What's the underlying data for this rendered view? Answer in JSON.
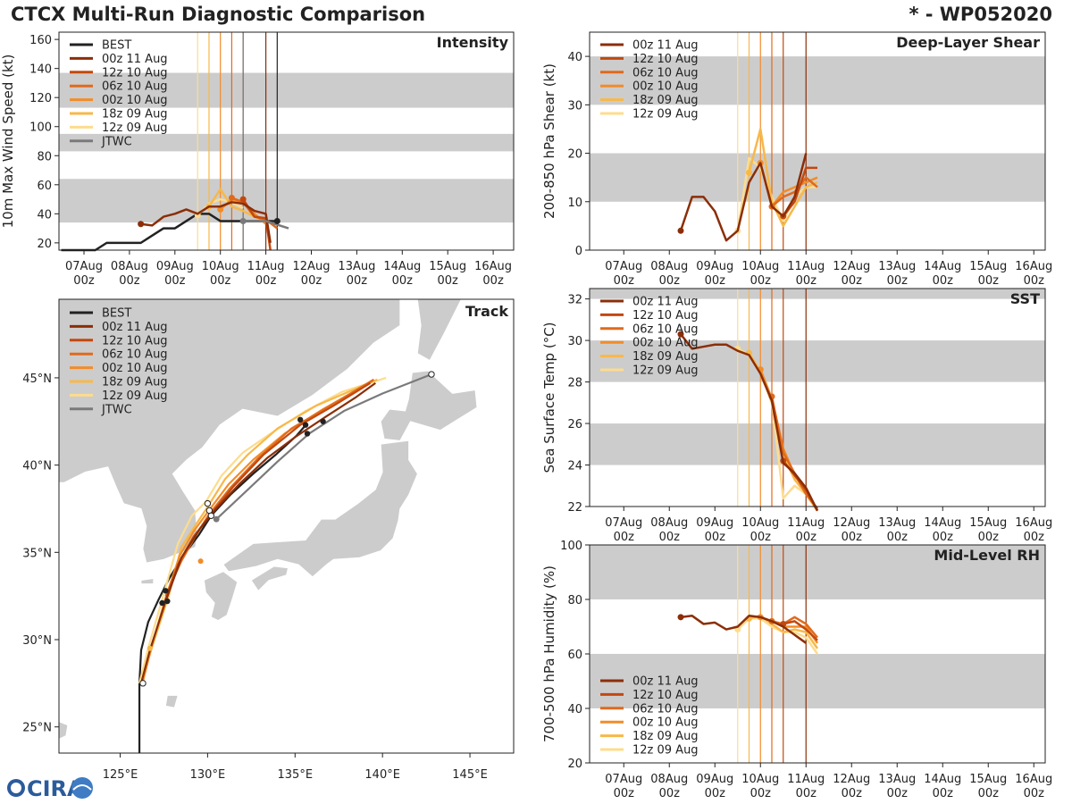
{
  "header": {
    "title": "CTCX Multi-Run Diagnostic Comparison",
    "storm": "* - WP052020"
  },
  "logo": {
    "text": "CIRA"
  },
  "colors": {
    "best": "#222222",
    "jtwc": "#7a7a7a",
    "runs": [
      "#8b2e08",
      "#c2480e",
      "#e06a1c",
      "#f28c28",
      "#f7b84a",
      "#fddc8e"
    ],
    "band": "#cccccc"
  },
  "runs": [
    "00z 11 Aug",
    "12z 10 Aug",
    "06z 10 Aug",
    "00z 10 Aug",
    "18z 09 Aug",
    "12z 09 Aug"
  ],
  "time_axis": {
    "ticks": [
      0,
      1,
      2,
      3,
      4,
      5,
      6,
      7,
      8,
      9
    ],
    "labels_top": [
      "07Aug",
      "08Aug",
      "09Aug",
      "10Aug",
      "11Aug",
      "12Aug",
      "13Aug",
      "14Aug",
      "15Aug",
      "16Aug"
    ],
    "labels_bottom": [
      "00z",
      "00z",
      "00z",
      "00z",
      "00z",
      "00z",
      "00z",
      "00z",
      "00z",
      "00z"
    ],
    "run_init_days": [
      4.0,
      3.5,
      3.25,
      3.0,
      2.75,
      2.5
    ]
  },
  "chart_data": [
    {
      "type": "line",
      "name": "intensity",
      "title": "Intensity",
      "ylabel": "10m Max Wind Speed (kt)",
      "xlim": [
        -0.55,
        9.45
      ],
      "ylim": [
        15,
        165
      ],
      "yticks": [
        20,
        40,
        60,
        80,
        100,
        120,
        140,
        160
      ],
      "bands": [
        [
          34,
          64
        ],
        [
          83,
          95
        ],
        [
          113,
          137
        ]
      ],
      "legend": [
        "BEST",
        "00z 11 Aug",
        "12z 10 Aug",
        "06z 10 Aug",
        "00z 10 Aug",
        "18z 09 Aug",
        "12z 09 Aug",
        "JTWC"
      ],
      "best": {
        "x": [
          -0.5,
          -0.25,
          0,
          0.25,
          0.5,
          0.75,
          1,
          1.25,
          1.5,
          1.75,
          2,
          2.25,
          2.5,
          2.75,
          3,
          3.25,
          3.5,
          3.75,
          4,
          4.25
        ],
        "y": [
          15,
          15,
          15,
          15,
          20,
          20,
          20,
          20,
          25,
          30,
          30,
          35,
          40,
          40,
          35,
          35,
          35,
          35,
          35,
          35
        ]
      },
      "jtwc": {
        "x": [
          3.5,
          4.0,
          4.5
        ],
        "y": [
          35,
          35,
          30
        ]
      },
      "series": [
        {
          "run": 0,
          "x": [
            1.25,
            1.5,
            1.75,
            2,
            2.25,
            2.5,
            2.75,
            3,
            3.25,
            3.5,
            3.75,
            4,
            4.1
          ],
          "y": [
            33,
            32,
            38,
            40,
            43,
            40,
            45,
            45,
            48,
            47,
            42,
            40,
            20
          ]
        },
        {
          "run": 1,
          "x": [
            3.5,
            3.75,
            4,
            4.1
          ],
          "y": [
            50,
            38,
            37,
            15
          ]
        },
        {
          "run": 2,
          "x": [
            3.25,
            3.5,
            3.75,
            4,
            4.25
          ],
          "y": [
            51,
            48,
            38,
            36,
            30
          ]
        },
        {
          "run": 3,
          "x": [
            3,
            3.25,
            3.5,
            3.75,
            4
          ],
          "y": [
            43,
            50,
            48,
            40,
            33
          ]
        },
        {
          "run": 4,
          "x": [
            2.75,
            3,
            3.25,
            3.5,
            3.75,
            4
          ],
          "y": [
            45,
            57,
            45,
            42,
            38,
            35
          ]
        },
        {
          "run": 5,
          "x": [
            2.5,
            2.75,
            3,
            3.25,
            3.5
          ],
          "y": [
            39,
            47,
            50,
            48,
            44
          ]
        }
      ]
    },
    {
      "type": "line",
      "name": "shear",
      "title": "Deep-Layer Shear",
      "ylabel": "200-850 hPa Shear (kt)",
      "xlim": [
        -0.75,
        9.25
      ],
      "ylim": [
        0,
        45
      ],
      "yticks": [
        0,
        10,
        20,
        30,
        40
      ],
      "bands": [
        [
          10,
          20
        ],
        [
          30,
          40
        ]
      ],
      "legend": [
        "00z 11 Aug",
        "12z 10 Aug",
        "06z 10 Aug",
        "00z 10 Aug",
        "18z 09 Aug",
        "12z 09 Aug"
      ],
      "series": [
        {
          "run": 0,
          "x": [
            1.25,
            1.5,
            1.75,
            2,
            2.25,
            2.5,
            2.75,
            3,
            3.25,
            3.5,
            3.75,
            4
          ],
          "y": [
            4,
            11,
            11,
            8,
            2,
            4,
            14,
            18,
            9,
            7,
            11,
            20
          ]
        },
        {
          "run": 1,
          "x": [
            3.5,
            3.75,
            4,
            4.25
          ],
          "y": [
            7,
            10,
            17,
            17
          ]
        },
        {
          "run": 2,
          "x": [
            3.25,
            3.5,
            3.75,
            4,
            4.25
          ],
          "y": [
            9,
            11,
            12,
            15,
            13
          ]
        },
        {
          "run": 3,
          "x": [
            3,
            3.25,
            3.5,
            3.75,
            4,
            4.25
          ],
          "y": [
            18,
            9,
            12,
            13,
            14,
            15
          ]
        },
        {
          "run": 4,
          "x": [
            2.75,
            3,
            3.25,
            3.5,
            3.75,
            4,
            4.25
          ],
          "y": [
            16,
            25,
            10,
            5,
            9,
            13,
            14
          ]
        },
        {
          "run": 5,
          "x": [
            2.5,
            2.75,
            3,
            3.25,
            3.5,
            3.75,
            4,
            4.25
          ],
          "y": [
            4,
            19,
            17,
            11,
            6,
            11,
            13,
            13
          ]
        }
      ]
    },
    {
      "type": "line",
      "name": "sst",
      "title": "SST",
      "ylabel": "Sea Surface Temp (°C)",
      "xlim": [
        -0.75,
        9.25
      ],
      "ylim": [
        22,
        32.5
      ],
      "yticks": [
        22,
        24,
        26,
        28,
        30,
        32
      ],
      "bands": [
        [
          24,
          26
        ],
        [
          28,
          30
        ],
        [
          32,
          32.5
        ]
      ],
      "legend": [
        "00z 11 Aug",
        "12z 10 Aug",
        "06z 10 Aug",
        "00z 10 Aug",
        "18z 09 Aug",
        "12z 09 Aug"
      ],
      "series": [
        {
          "run": 0,
          "x": [
            1.25,
            1.5,
            1.75,
            2,
            2.25,
            2.5,
            2.75,
            3,
            3.25,
            3.5,
            3.75,
            4,
            4.25
          ],
          "y": [
            30.3,
            29.6,
            29.7,
            29.8,
            29.8,
            29.5,
            29.3,
            28.4,
            27.1,
            24.1,
            23.6,
            22.9,
            21.8
          ]
        },
        {
          "run": 1,
          "x": [
            3.5,
            3.75,
            4,
            4.25
          ],
          "y": [
            24.2,
            23.5,
            22.8,
            21.8
          ]
        },
        {
          "run": 2,
          "x": [
            3.25,
            3.5,
            3.75,
            4,
            4.25
          ],
          "y": [
            27.3,
            24.6,
            23.6,
            22.6,
            21.9
          ]
        },
        {
          "run": 3,
          "x": [
            3,
            3.25,
            3.5,
            3.75,
            4,
            4.25
          ],
          "y": [
            28.6,
            27.2,
            24.8,
            23.5,
            22.8,
            21.8
          ]
        },
        {
          "run": 4,
          "x": [
            2.75,
            3,
            3.25,
            3.5,
            3.75,
            4,
            4.25
          ],
          "y": [
            29.4,
            28.5,
            27.0,
            24.5,
            23.3,
            22.6,
            21.8
          ]
        },
        {
          "run": 5,
          "x": [
            2.5,
            2.75,
            3,
            3.25,
            3.5,
            3.75,
            4,
            4.25
          ],
          "y": [
            29.6,
            29.3,
            28.4,
            27.1,
            22.4,
            23.0,
            22.6,
            21.8
          ]
        }
      ]
    },
    {
      "type": "line",
      "name": "rh",
      "title": "Mid-Level RH",
      "ylabel": "700-500 hPa Humidity (%)",
      "xlim": [
        -0.75,
        9.25
      ],
      "ylim": [
        20,
        100
      ],
      "yticks": [
        20,
        40,
        60,
        80,
        100
      ],
      "bands": [
        [
          40,
          60
        ],
        [
          80,
          100
        ]
      ],
      "legend": [
        "00z 11 Aug",
        "12z 10 Aug",
        "06z 10 Aug",
        "00z 10 Aug",
        "18z 09 Aug",
        "12z 09 Aug"
      ],
      "series": [
        {
          "run": 0,
          "x": [
            1.25,
            1.5,
            1.75,
            2,
            2.25,
            2.5,
            2.75,
            3,
            3.25,
            3.5,
            3.75,
            4
          ],
          "y": [
            73.5,
            74,
            71,
            71.5,
            69,
            70,
            74,
            73.5,
            72,
            70,
            67,
            64
          ]
        },
        {
          "run": 1,
          "x": [
            3.5,
            3.75,
            4,
            4.25
          ],
          "y": [
            71,
            72,
            69,
            65
          ]
        },
        {
          "run": 2,
          "x": [
            3.25,
            3.5,
            3.75,
            4,
            4.25
          ],
          "y": [
            72,
            71,
            73.5,
            71,
            66
          ]
        },
        {
          "run": 3,
          "x": [
            3,
            3.25,
            3.5,
            3.75,
            4,
            4.25
          ],
          "y": [
            73.5,
            72,
            70,
            70,
            70,
            64
          ]
        },
        {
          "run": 4,
          "x": [
            2.75,
            3,
            3.25,
            3.5,
            3.75,
            4,
            4.25
          ],
          "y": [
            73,
            74,
            71,
            68,
            69,
            68,
            62
          ]
        },
        {
          "run": 5,
          "x": [
            2.5,
            2.75,
            3,
            3.25,
            3.5,
            3.75,
            4,
            4.25
          ],
          "y": [
            69,
            73,
            73,
            70,
            68,
            68,
            66,
            60
          ]
        }
      ]
    },
    {
      "type": "scatter",
      "name": "track",
      "title": "Track",
      "lonlim": [
        121.5,
        147.5
      ],
      "latlim": [
        23.5,
        49.5
      ],
      "lon_ticks": [
        125,
        130,
        135,
        140,
        145
      ],
      "lon_labels": [
        "125°E",
        "130°E",
        "135°E",
        "140°E",
        "145°E"
      ],
      "lat_ticks": [
        25,
        30,
        35,
        40,
        45
      ],
      "lat_labels": [
        "25°N",
        "30°N",
        "35°N",
        "40°N",
        "45°N"
      ],
      "legend": [
        "BEST",
        "00z 11 Aug",
        "12z 10 Aug",
        "06z 10 Aug",
        "00z 10 Aug",
        "18z 09 Aug",
        "12z 09 Aug",
        "JTWC"
      ],
      "best": {
        "lon": [
          126.1,
          126.1,
          126.1,
          126.2,
          126.6,
          127.2,
          127.8,
          128.6,
          129.5,
          130.2,
          131.3,
          132.6,
          133.9,
          135.1,
          135.7
        ],
        "lat": [
          23.5,
          25.5,
          27.5,
          29.4,
          31.0,
          32.3,
          33.5,
          34.8,
          36.0,
          37.1,
          38.3,
          39.5,
          40.6,
          41.7,
          42.4
        ]
      },
      "jtwc": {
        "lon": [
          130.5,
          132.2,
          134.0,
          135.8,
          137.8,
          140.0,
          142.8
        ],
        "lat": [
          36.9,
          38.5,
          40.2,
          41.8,
          43.1,
          44.1,
          45.2
        ]
      },
      "series": [
        {
          "run": 0,
          "lon": [
            126.2,
            126.7,
            127.6,
            128.5,
            129.6,
            130.4,
            131.8,
            133.4,
            135.0,
            136.8,
            138.5,
            139.6
          ],
          "lat": [
            27.5,
            29.4,
            32.2,
            34.7,
            36.4,
            37.4,
            38.9,
            40.4,
            41.6,
            42.8,
            43.9,
            44.7
          ]
        },
        {
          "run": 1,
          "lon": [
            127.5,
            128.3,
            129.2,
            130.2,
            131.5,
            133.2,
            135.3,
            137.2,
            139.3
          ],
          "lat": [
            32.0,
            34.3,
            35.9,
            37.2,
            38.8,
            40.6,
            42.3,
            43.4,
            44.7
          ]
        },
        {
          "run": 2,
          "lon": [
            127.6,
            128.5,
            129.4,
            130.1,
            131.3,
            132.9,
            134.8,
            137.0,
            139.5
          ],
          "lat": [
            32.5,
            34.5,
            36.1,
            37.2,
            38.7,
            40.4,
            42.1,
            43.4,
            44.9
          ]
        },
        {
          "run": 3,
          "lon": [
            126.3,
            126.8,
            127.6,
            128.4,
            129.2,
            130.0,
            131.2,
            132.6,
            134.4,
            136.6,
            139.4
          ],
          "lat": [
            27.6,
            29.6,
            32.4,
            34.8,
            36.2,
            37.3,
            38.9,
            40.3,
            41.8,
            43.2,
            44.8
          ]
        },
        {
          "run": 4,
          "lon": [
            126.2,
            126.8,
            127.8,
            128.5,
            129.4,
            130.0,
            131.0,
            132.3,
            134.0,
            136.2,
            139.7
          ],
          "lat": [
            27.5,
            29.5,
            32.6,
            35.3,
            36.7,
            37.6,
            39.2,
            40.6,
            42.1,
            43.4,
            44.9
          ]
        },
        {
          "run": 5,
          "lon": [
            126.1,
            126.6,
            127.4,
            128.3,
            129.1,
            129.9,
            130.8,
            132.0,
            133.6,
            135.6,
            137.7,
            140.2
          ],
          "lat": [
            27.5,
            29.5,
            32.3,
            35.5,
            37.1,
            37.9,
            39.4,
            40.7,
            41.8,
            43.1,
            44.2,
            45.0
          ]
        }
      ]
    }
  ]
}
